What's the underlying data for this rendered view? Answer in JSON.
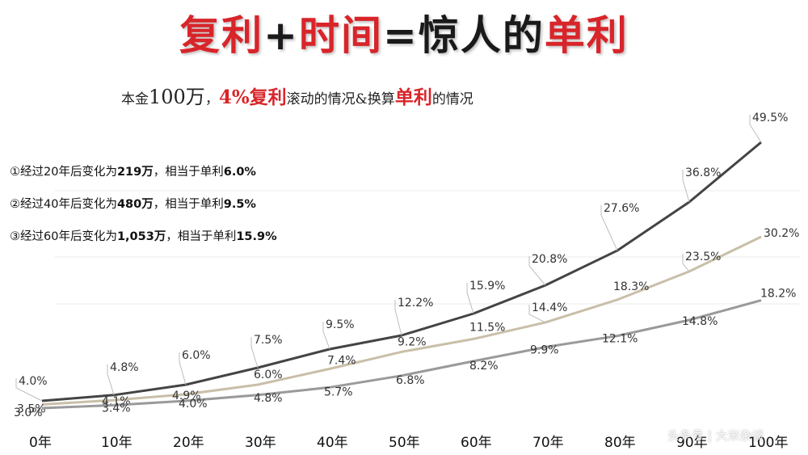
{
  "header": {
    "title_part1": "复利",
    "title_plus": "+",
    "title_part2": "时间",
    "title_equals": "=",
    "title_part3": "惊人的",
    "title_part4": "单利"
  },
  "subtitle": {
    "prefix": "本金",
    "amount": "100万",
    "sep": "，",
    "rate": "4%复利",
    "middle": "滚动的情况&换算",
    "simple": "单利",
    "suffix": "的情况"
  },
  "notes": [
    {
      "text": "①经过20年后变化为",
      "amount": "219万",
      "mid": "，相当于单利",
      "rate": "6.0%"
    },
    {
      "text": "②经过40年后变化为",
      "amount": "480万",
      "mid": "，相当于单利",
      "rate": "9.5%"
    },
    {
      "text": "③经过60年后变化为",
      "amount": "1,053万",
      "mid": "，相当于单利",
      "rate": "15.9%"
    }
  ],
  "watermark": "头条号 | 大米杂谈",
  "colors": {
    "title_red": "#d8252a",
    "line_4pct": "#444444",
    "line_3_5pct": "#c9bfa8",
    "line_3pct": "#9a9a9a"
  },
  "chart_data": {
    "type": "line",
    "categories": [
      "0年",
      "10年",
      "20年",
      "30年",
      "40年",
      "50年",
      "60年",
      "70年",
      "80年",
      "90年",
      "100年"
    ],
    "series": [
      {
        "values": [
          4.0,
          4.8,
          6.0,
          7.5,
          9.5,
          12.2,
          15.9,
          20.8,
          27.6,
          36.8,
          49.5
        ],
        "labels": [
          "4.0%",
          "4.8%",
          "6.0%",
          "7.5%",
          "9.5%",
          "12.2%",
          "15.9%",
          "20.8%",
          "27.6%",
          "36.8%",
          "49.5%"
        ]
      },
      {
        "values": [
          3.5,
          4.1,
          4.9,
          6.0,
          7.4,
          9.2,
          11.5,
          14.4,
          18.3,
          23.5,
          30.2
        ],
        "labels": [
          "3.5%",
          "4.1%",
          "4.9%",
          "6.0%",
          "7.4%",
          "9.2%",
          "11.5%",
          "14.4%",
          "18.3%",
          "23.5%",
          "30.2%"
        ]
      },
      {
        "values": [
          3.0,
          3.4,
          4.0,
          4.8,
          5.7,
          6.8,
          8.2,
          9.9,
          12.1,
          14.8,
          18.2
        ],
        "labels": [
          "3.0%",
          "3.4%",
          "4.0%",
          "4.8%",
          "5.7%",
          "6.8%",
          "8.2%",
          "9.9%",
          "12.1%",
          "14.8%",
          "18.2%"
        ]
      }
    ],
    "grid": true,
    "legend": "none"
  }
}
